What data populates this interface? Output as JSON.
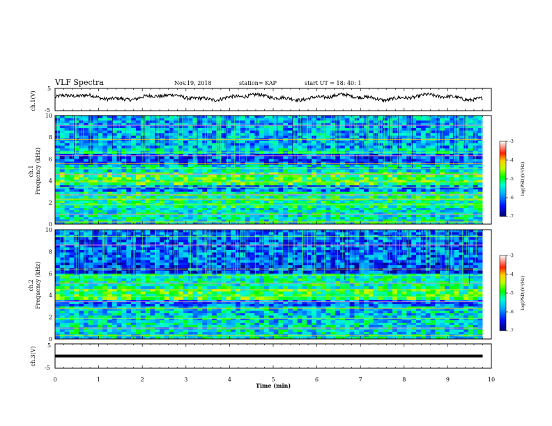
{
  "header": {
    "title": "VLF Spectra",
    "date": "Nov.19, 2018",
    "station": "station= KAP",
    "start": "start  UT  =   18: 40: 1"
  },
  "chart_data": [
    {
      "type": "line",
      "name": "ch1-waveform-panel",
      "ylabel": "ch.1(V)",
      "y_ticks": [
        "5",
        "-5"
      ],
      "ylim": [
        -5,
        5
      ],
      "xlim": [
        0,
        10
      ],
      "x_end_data": 9.8,
      "baseline": 1.0,
      "note": "noisy waveform trace between approximately -1 and 3 V"
    },
    {
      "type": "heatmap",
      "name": "ch1-spectrogram",
      "ylabel_channel": "ch.1",
      "ylabel": "Frequency (kHz)",
      "y_ticks": [
        "0",
        "2",
        "4",
        "6",
        "8",
        "10"
      ],
      "ylim": [
        0,
        10
      ],
      "xlim": [
        0,
        10
      ],
      "x_end_data": 9.8,
      "bands": [
        {
          "range": [
            0,
            1.5
          ],
          "level": -5.4
        },
        {
          "range": [
            1.5,
            3.0
          ],
          "level": -5.2
        },
        {
          "range": [
            3.0,
            3.6
          ],
          "level": -6.0
        },
        {
          "range": [
            3.6,
            4.8
          ],
          "level": -5.0
        },
        {
          "range": [
            4.8,
            5.5
          ],
          "level": -5.5
        },
        {
          "range": [
            5.5,
            6.5
          ],
          "level": -6.2
        },
        {
          "range": [
            6.5,
            7.0
          ],
          "level": -5.5
        },
        {
          "range": [
            7.0,
            10.0
          ],
          "level": -5.8
        }
      ],
      "lines_khz": [
        0.2,
        0.9,
        1.8,
        2.3,
        2.7,
        3.4,
        3.9,
        4.6,
        5.1,
        5.6,
        6.3,
        6.6,
        7.8,
        9.1
      ]
    },
    {
      "type": "heatmap",
      "name": "ch2-spectrogram",
      "ylabel_channel": "ch.2",
      "ylabel": "Frequency (kHz)",
      "y_ticks": [
        "0",
        "2",
        "4",
        "6",
        "8",
        "10"
      ],
      "ylim": [
        0,
        10
      ],
      "xlim": [
        0,
        10
      ],
      "x_end_data": 9.8,
      "bands": [
        {
          "range": [
            0,
            1.5
          ],
          "level": -5.5
        },
        {
          "range": [
            1.5,
            3.0
          ],
          "level": -5.6
        },
        {
          "range": [
            3.0,
            3.6
          ],
          "level": -6.0
        },
        {
          "range": [
            3.6,
            4.6
          ],
          "level": -4.9
        },
        {
          "range": [
            4.6,
            6.0
          ],
          "level": -5.3
        },
        {
          "range": [
            6.0,
            7.0
          ],
          "level": -6.3
        },
        {
          "range": [
            7.0,
            10.0
          ],
          "level": -6.1
        }
      ],
      "lines_khz": [
        0.3,
        1.0,
        1.9,
        2.8,
        3.4,
        3.9,
        4.5,
        5.1,
        5.8,
        6.4,
        8.6,
        9.4
      ]
    },
    {
      "type": "line",
      "name": "ch3-waveform-panel",
      "ylabel": "ch.3(V)",
      "y_ticks": [
        "5",
        "-5"
      ],
      "ylim": [
        -5,
        5
      ],
      "xlim": [
        0,
        10
      ],
      "x_end_data": 9.8,
      "baseline": 0.0,
      "note": "flat thick line near 0 V"
    }
  ],
  "x_axis": {
    "label": "Time  (min)",
    "ticks": [
      "0",
      "1",
      "2",
      "3",
      "4",
      "5",
      "6",
      "7",
      "8",
      "9",
      "10"
    ]
  },
  "colorbars": [
    {
      "ticks": [
        "-3",
        "-4",
        "-5",
        "-6",
        "-7"
      ],
      "label": "log(PSD)(V²/Hz)"
    },
    {
      "ticks": [
        "-3",
        "-4",
        "-5",
        "-6",
        "-7"
      ],
      "label": "log(PSD)(V²/Hz)"
    }
  ],
  "colors": {
    "low": "#000080",
    "mid": "#00ff00",
    "high": "#ff0000",
    "max": "#ffffff"
  }
}
